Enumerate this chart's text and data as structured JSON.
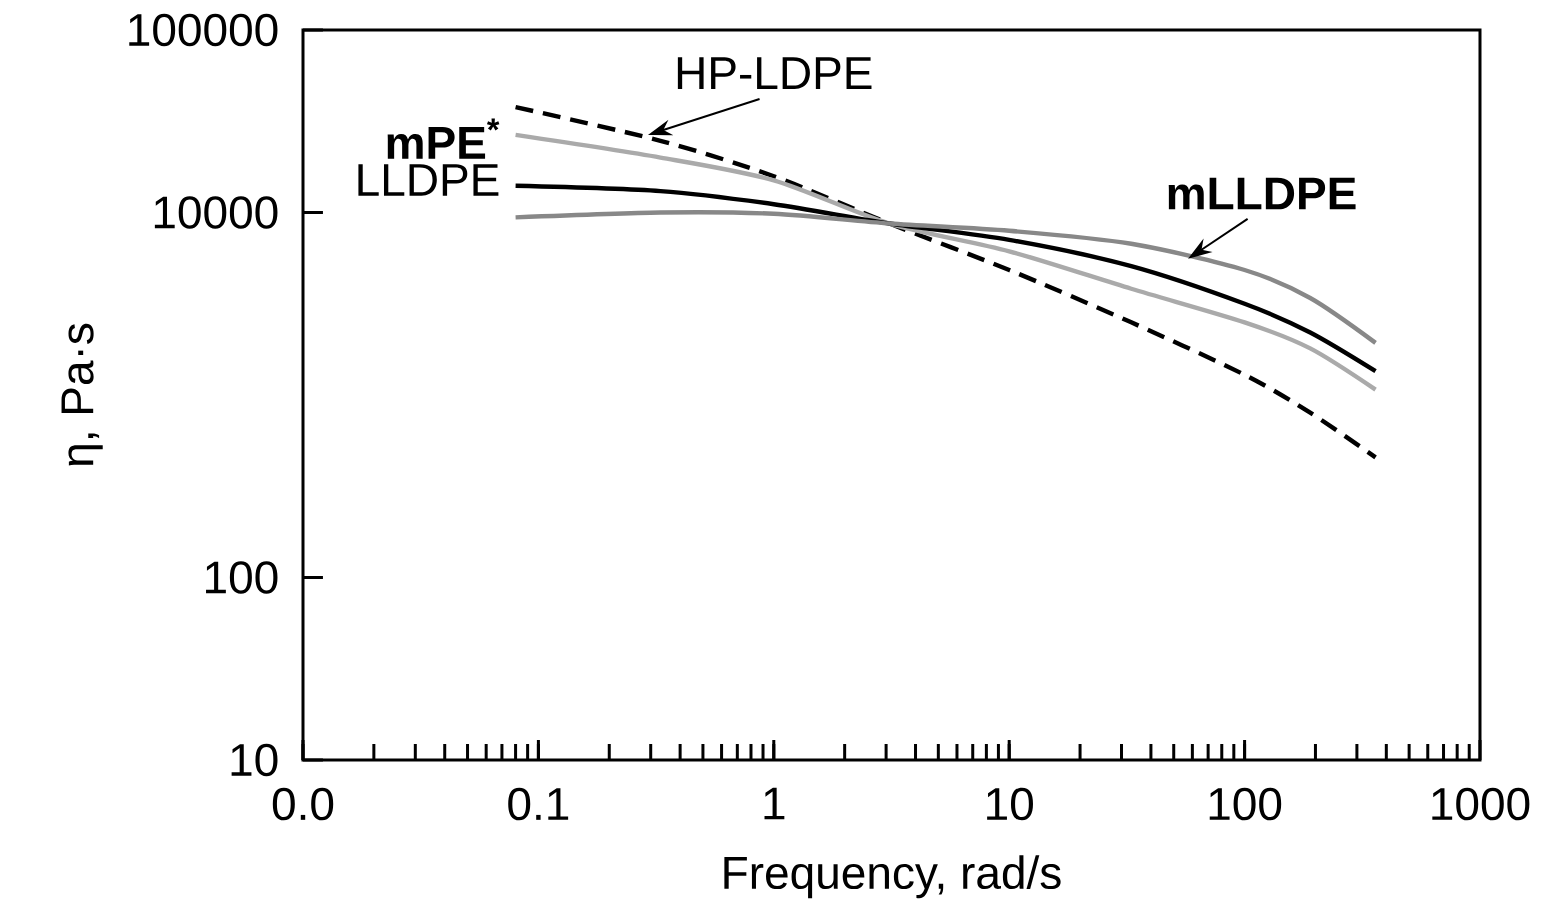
{
  "chart_data": {
    "type": "line",
    "xlabel": "Frequency, rad/s",
    "ylabel": "η, Pa·s",
    "log": "xy",
    "x": [
      0.08,
      0.33,
      1,
      3.1,
      10,
      33,
      100,
      190,
      360
    ],
    "xlim": [
      0.01,
      1000
    ],
    "xticks": [
      {
        "value": 0.01,
        "label": "0.0"
      },
      0.1,
      1,
      10,
      100,
      1000
    ],
    "ylim": [
      10,
      100000
    ],
    "yticks": [
      10,
      100,
      10000,
      100000
    ],
    "series": [
      {
        "name": "HP-LDPE",
        "color": "#000000",
        "line_style": "dashed",
        "values": [
          37800,
          24700,
          15800,
          8700,
          4840,
          2500,
          1290,
          800,
          455
        ]
      },
      {
        "name": "**mPE$^{*}$**",
        "color": "#aaaaaa",
        "line_style": "solid",
        "values": [
          26600,
          20000,
          15000,
          8700,
          6130,
          3820,
          2500,
          1800,
          1070
        ]
      },
      {
        "name": "LLDPE",
        "color": "#000000",
        "line_style": "solid",
        "values": [
          14000,
          13100,
          11100,
          8700,
          7080,
          5080,
          3160,
          2200,
          1350
        ]
      },
      {
        "name": "**mLLDPE**",
        "color": "#888888",
        "line_style": "solid",
        "values": [
          9400,
          10000,
          9840,
          8700,
          7940,
          6740,
          4840,
          3400,
          1930
        ]
      }
    ],
    "grid": false,
    "legend": "top left",
    "marker": "none"
  }
}
